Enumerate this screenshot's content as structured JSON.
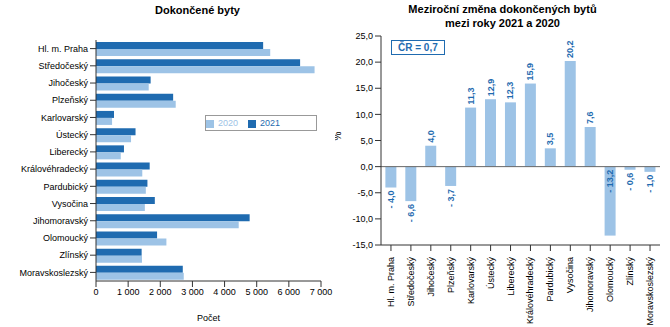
{
  "chart_data": [
    {
      "type": "bar",
      "title": "Dokončené byty",
      "orientation": "horizontal",
      "x_label": "Počet",
      "categories": [
        "Hl. m. Praha",
        "Středočeský",
        "Jihočeský",
        "Plzeňský",
        "Karlovarský",
        "Ústecký",
        "Liberecký",
        "Královéhradecký",
        "Pardubický",
        "Vysočina",
        "Jihomoravský",
        "Olomoucký",
        "Zlínský",
        "Moravskoslezský"
      ],
      "series": [
        {
          "name": "2021",
          "color": "#1f6bb0",
          "values": [
            5200,
            6350,
            1700,
            2400,
            560,
            1230,
            870,
            1670,
            1600,
            1830,
            4780,
            1900,
            1420,
            2700
          ]
        },
        {
          "name": "2020",
          "color": "#9dc3e6",
          "values": [
            5420,
            6800,
            1640,
            2480,
            500,
            1090,
            770,
            1440,
            1550,
            1520,
            4440,
            2190,
            1430,
            2730
          ]
        }
      ],
      "xlim": [
        0,
        7000
      ],
      "xticks": [
        0,
        {
          "value": 1000,
          "label": "1 000"
        },
        {
          "value": 2000,
          "label": "2 000"
        },
        {
          "value": 3000,
          "label": "3 000"
        },
        {
          "value": 4000,
          "label": "4 000"
        },
        {
          "value": 5000,
          "label": "5 000"
        },
        {
          "value": 6000,
          "label": "6 000"
        },
        {
          "value": 7000,
          "label": "7 000"
        }
      ],
      "legend": "right",
      "grid": false
    },
    {
      "type": "bar",
      "title": "Meziroční změna dokončených bytů\nmezi roky 2021 a 2020",
      "y_label": "%",
      "annotations": [
        "ČR = 0,7"
      ],
      "categories": [
        "Hl. m. Praha",
        "Středočeský",
        "Jihočeský",
        "Plzeňský",
        "Karlovarský",
        "Ústecký",
        "Liberecký",
        "Královéhradecký",
        "Pardubický",
        "Vysočina",
        "Jihomoravský",
        "Olomoucký",
        "Zlínský",
        "Moravskoslezský"
      ],
      "values": [
        -4.0,
        -6.6,
        4.0,
        -3.7,
        11.3,
        12.9,
        12.3,
        15.9,
        3.5,
        20.2,
        7.6,
        -13.2,
        -0.6,
        -1.0
      ],
      "value_labels": [
        "- 4,0",
        "- 6,6",
        "4,0",
        "- 3,7",
        "11,3",
        "12,9",
        "12,3",
        "15,9",
        "3,5",
        "20,2",
        "7,6",
        "- 13,2",
        "- 0,6",
        "- 1,0"
      ],
      "data_labels": true,
      "color": "#9dc3e6",
      "ylim": [
        -15,
        25
      ],
      "yticks": [
        {
          "value": -15,
          "label": "-15,0"
        },
        {
          "value": -10,
          "label": "-10,0"
        },
        {
          "value": -5,
          "label": "-5,0"
        },
        {
          "value": 0,
          "label": "0,0"
        },
        {
          "value": 5,
          "label": "5,0"
        },
        {
          "value": 10,
          "label": "10,0"
        },
        {
          "value": 15,
          "label": "15,0"
        },
        {
          "value": 20,
          "label": "20,0"
        },
        {
          "value": 25,
          "label": "25,0"
        }
      ],
      "grid": false
    }
  ]
}
